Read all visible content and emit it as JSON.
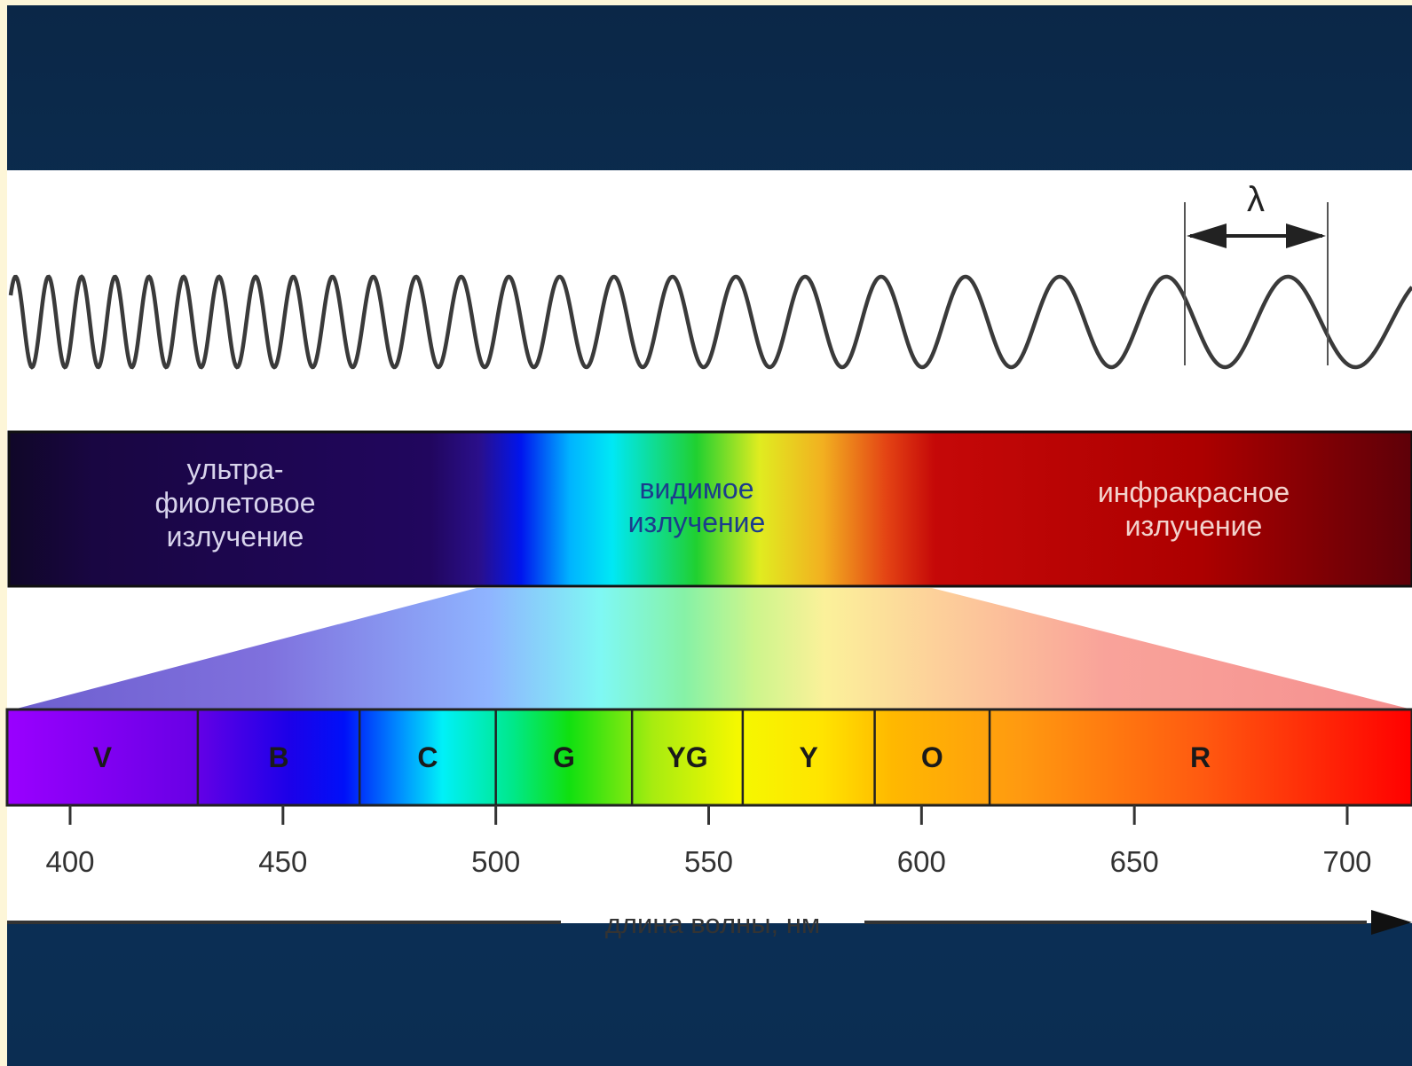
{
  "wave": {
    "lambda_symbol": "λ"
  },
  "regions": {
    "ultraviolet": [
      "ультра-",
      "фиолетовое",
      "излучение"
    ],
    "visible": [
      "видимое",
      "излучение"
    ],
    "infrared": [
      "инфракрасное",
      "излучение"
    ]
  },
  "color_bands": [
    {
      "label": "V",
      "from": 385,
      "to": 430,
      "text_color": "#1a1a1a"
    },
    {
      "label": "B",
      "from": 430,
      "to": 468,
      "text_color": "#1a1a1a"
    },
    {
      "label": "C",
      "from": 468,
      "to": 500,
      "text_color": "#1a1a1a"
    },
    {
      "label": "G",
      "from": 500,
      "to": 532,
      "text_color": "#1a1a1a"
    },
    {
      "label": "YG",
      "from": 532,
      "to": 558,
      "text_color": "#1a1a1a"
    },
    {
      "label": "Y",
      "from": 558,
      "to": 589,
      "text_color": "#1a1a1a"
    },
    {
      "label": "O",
      "from": 589,
      "to": 616,
      "text_color": "#1a1a1a"
    },
    {
      "label": "R",
      "from": 616,
      "to": 715,
      "text_color": "#1a1a1a"
    }
  ],
  "axis": {
    "ticks": [
      400,
      450,
      500,
      550,
      600,
      650,
      700
    ],
    "label": "длина волны, нм"
  }
}
